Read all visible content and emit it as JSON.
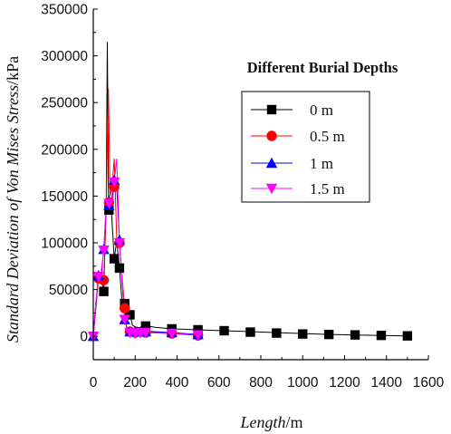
{
  "chart_data": {
    "type": "line",
    "xlabel_italic": "Length",
    "xlabel_unit": "/m",
    "ylabel_italic": "Standard Deviation of Von Mises Stress",
    "ylabel_unit": "/kPa",
    "legend_title": "Different Burial Depths",
    "legend_position": "upper-right",
    "xlim": [
      0,
      1600
    ],
    "ylim": [
      -25000,
      350000
    ],
    "xticks": [
      0,
      200,
      400,
      600,
      800,
      1000,
      1200,
      1400,
      1600
    ],
    "yticks": [
      0,
      50000,
      100000,
      150000,
      200000,
      250000,
      300000,
      350000
    ],
    "series": [
      {
        "name": "0 m",
        "color": "#000000",
        "marker": "square",
        "line": [
          [
            0,
            0
          ],
          [
            12,
            30000
          ],
          [
            25,
            65000
          ],
          [
            37,
            62000
          ],
          [
            50,
            48000
          ],
          [
            62,
            145000
          ],
          [
            67,
            315000
          ],
          [
            73,
            135000
          ],
          [
            85,
            140000
          ],
          [
            100,
            83000
          ],
          [
            112,
            102000
          ],
          [
            125,
            73000
          ],
          [
            137,
            38000
          ],
          [
            150,
            34000
          ],
          [
            175,
            24000
          ],
          [
            187,
            12000
          ],
          [
            200,
            10000
          ],
          [
            225,
            9000
          ],
          [
            250,
            11000
          ],
          [
            300,
            9500
          ],
          [
            375,
            8000
          ],
          [
            500,
            7000
          ],
          [
            625,
            6000
          ],
          [
            750,
            5000
          ],
          [
            875,
            4000
          ],
          [
            1000,
            3000
          ],
          [
            1125,
            2000
          ],
          [
            1250,
            1500
          ],
          [
            1375,
            1000
          ],
          [
            1500,
            500
          ]
        ],
        "markers": [
          [
            50,
            48000
          ],
          [
            75,
            135000
          ],
          [
            100,
            83000
          ],
          [
            125,
            73000
          ],
          [
            150,
            35000
          ],
          [
            175,
            23000
          ],
          [
            250,
            11000
          ],
          [
            375,
            8000
          ],
          [
            500,
            7000
          ],
          [
            625,
            6000
          ],
          [
            750,
            4500
          ],
          [
            875,
            3500
          ],
          [
            1000,
            2500
          ],
          [
            1125,
            2000
          ],
          [
            1250,
            1500
          ],
          [
            1375,
            1000
          ],
          [
            1500,
            500
          ]
        ]
      },
      {
        "name": "0.5 m",
        "color": "#ff0000",
        "marker": "circle",
        "line": [
          [
            0,
            0
          ],
          [
            12,
            35000
          ],
          [
            25,
            60000
          ],
          [
            37,
            63000
          ],
          [
            50,
            60000
          ],
          [
            62,
            140000
          ],
          [
            72,
            265000
          ],
          [
            80,
            150000
          ],
          [
            90,
            160000
          ],
          [
            100,
            190000
          ],
          [
            112,
            105000
          ],
          [
            125,
            98000
          ],
          [
            137,
            65000
          ],
          [
            150,
            30000
          ],
          [
            160,
            8000
          ],
          [
            187,
            5000
          ],
          [
            200,
            4000
          ],
          [
            250,
            5000
          ],
          [
            375,
            3000
          ],
          [
            500,
            1000
          ]
        ],
        "markers": [
          [
            25,
            62000
          ],
          [
            50,
            60000
          ],
          [
            75,
            143000
          ],
          [
            100,
            160000
          ],
          [
            125,
            100000
          ],
          [
            150,
            30000
          ],
          [
            175,
            5000
          ],
          [
            200,
            4000
          ],
          [
            250,
            4000
          ],
          [
            375,
            3000
          ],
          [
            500,
            1000
          ]
        ]
      },
      {
        "name": "1 m",
        "color": "#0000ff",
        "marker": "triangle-up",
        "line": [
          [
            0,
            0
          ],
          [
            12,
            35000
          ],
          [
            25,
            66000
          ],
          [
            37,
            62000
          ],
          [
            50,
            93000
          ],
          [
            62,
            140000
          ],
          [
            75,
            150000
          ],
          [
            87,
            145000
          ],
          [
            100,
            167000
          ],
          [
            112,
            160000
          ],
          [
            125,
            103000
          ],
          [
            137,
            60000
          ],
          [
            150,
            18000
          ],
          [
            162,
            8000
          ],
          [
            175,
            5000
          ],
          [
            200,
            5000
          ],
          [
            225,
            6000
          ],
          [
            250,
            5500
          ],
          [
            375,
            4000
          ],
          [
            500,
            2000
          ]
        ],
        "markers": [
          [
            0,
            0
          ],
          [
            25,
            65000
          ],
          [
            50,
            93000
          ],
          [
            75,
            140000
          ],
          [
            100,
            167000
          ],
          [
            125,
            103000
          ],
          [
            150,
            18000
          ],
          [
            175,
            5000
          ],
          [
            200,
            5000
          ],
          [
            225,
            5000
          ],
          [
            250,
            5000
          ],
          [
            375,
            4000
          ],
          [
            500,
            2000
          ]
        ]
      },
      {
        "name": "1.5 m",
        "color": "#ff00ff",
        "marker": "triangle-down",
        "line": [
          [
            0,
            0
          ],
          [
            12,
            36000
          ],
          [
            25,
            64000
          ],
          [
            37,
            68000
          ],
          [
            50,
            92000
          ],
          [
            62,
            138000
          ],
          [
            75,
            142000
          ],
          [
            87,
            130000
          ],
          [
            100,
            165000
          ],
          [
            112,
            190000
          ],
          [
            125,
            100000
          ],
          [
            137,
            62000
          ],
          [
            150,
            18000
          ],
          [
            162,
            6000
          ],
          [
            175,
            4000
          ],
          [
            200,
            3000
          ],
          [
            225,
            4000
          ],
          [
            250,
            4000
          ],
          [
            375,
            3000
          ],
          [
            500,
            1500
          ]
        ],
        "markers": [
          [
            0,
            0
          ],
          [
            25,
            64000
          ],
          [
            50,
            92000
          ],
          [
            75,
            142000
          ],
          [
            100,
            165000
          ],
          [
            125,
            100000
          ],
          [
            150,
            18000
          ],
          [
            175,
            4000
          ],
          [
            200,
            3000
          ],
          [
            225,
            3500
          ],
          [
            250,
            4000
          ],
          [
            375,
            3000
          ],
          [
            500,
            1500
          ]
        ]
      }
    ]
  }
}
